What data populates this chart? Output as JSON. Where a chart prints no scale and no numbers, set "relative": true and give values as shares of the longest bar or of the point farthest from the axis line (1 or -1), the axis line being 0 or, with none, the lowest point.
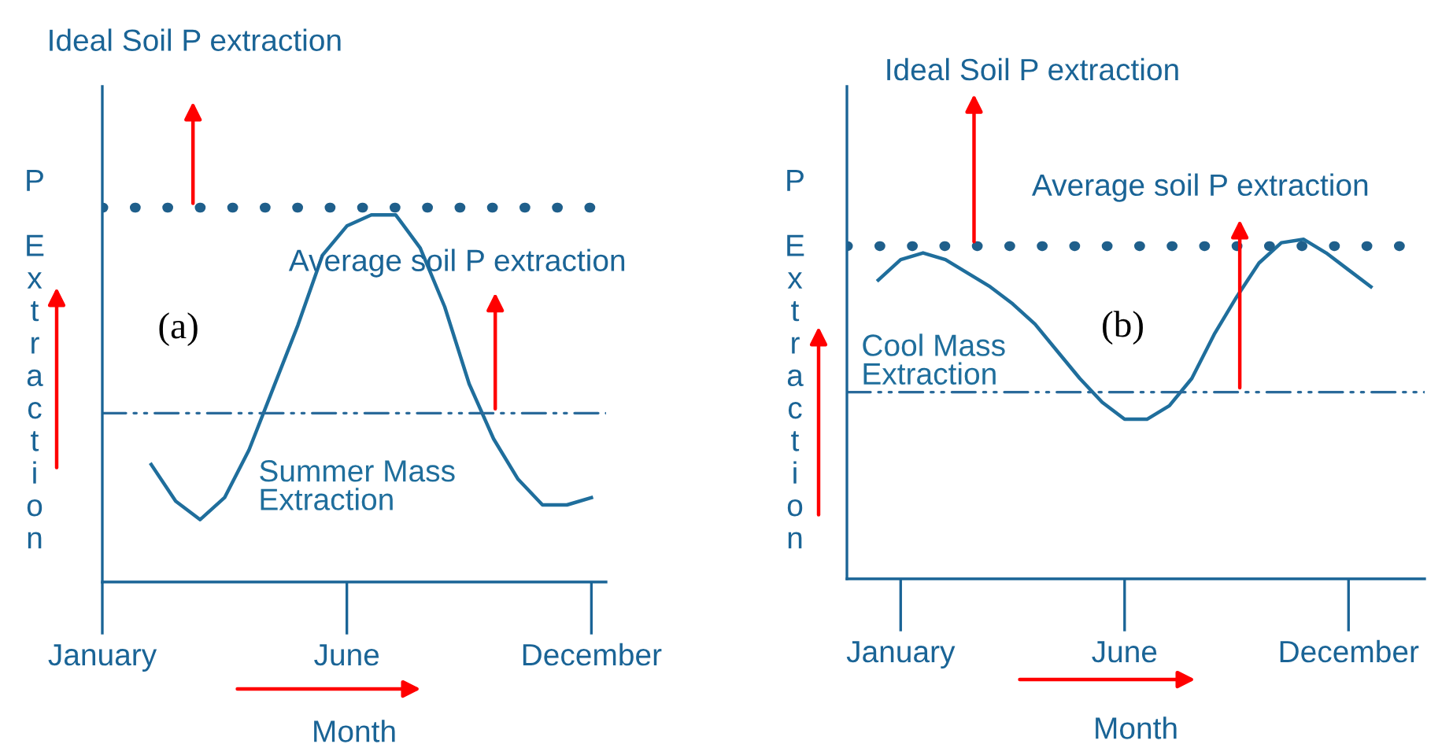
{
  "chart_data": [
    {
      "type": "line",
      "relative": true,
      "xlabel": "Month",
      "ylabel": "P Extraction",
      "categories": [
        "January",
        null,
        null,
        null,
        null,
        null,
        null,
        null,
        null,
        null,
        "June",
        null,
        null,
        null,
        null,
        null,
        null,
        null,
        null,
        null,
        "December"
      ],
      "series": [
        {
          "name": "Summer Mass Extraction",
          "color": "#1f6e9c",
          "values": [
            null,
            null,
            0.32,
            0.22,
            0.17,
            0.23,
            0.36,
            0.53,
            0.7,
            0.89,
            0.97,
            1.0,
            1.0,
            0.91,
            0.75,
            0.54,
            0.39,
            0.28,
            0.21,
            0.21,
            0.23
          ]
        }
      ],
      "ref_lines": [
        {
          "axis": "y",
          "value": 1.02,
          "label": "Ideal Soil P extraction",
          "color": "#1f5f8b",
          "line_style": "dotted"
        },
        {
          "axis": "y",
          "value": 0.46,
          "label": "Average soil P extraction",
          "color": "#2a6a9a",
          "line_style": "dashdot"
        }
      ],
      "annotations": [
        "(a)"
      ],
      "grid": false,
      "legend": false
    },
    {
      "type": "line",
      "relative": true,
      "xlabel": "Month",
      "ylabel": "P Extraction",
      "categories": [
        null,
        "January",
        null,
        null,
        null,
        null,
        null,
        null,
        null,
        null,
        null,
        "June",
        null,
        null,
        null,
        null,
        null,
        null,
        null,
        null,
        null,
        "December",
        null
      ],
      "series": [
        {
          "name": "Cool Mass Extraction",
          "color": "#1f6e9c",
          "values": [
            0.88,
            0.94,
            0.96,
            0.94,
            0.9,
            0.86,
            0.81,
            0.75,
            0.67,
            0.59,
            0.52,
            0.47,
            0.47,
            0.51,
            0.59,
            0.72,
            0.83,
            0.93,
            0.99,
            1.0,
            0.96,
            0.91,
            0.86
          ]
        }
      ],
      "ref_lines": [
        {
          "axis": "y",
          "value": 0.98,
          "label": "Ideal Soil P extraction",
          "color": "#1f5f8b",
          "line_style": "dotted"
        },
        {
          "axis": "y",
          "value": 0.55,
          "label": "Average soil P extraction",
          "color": "#2a6a9a",
          "line_style": "dashdot"
        }
      ],
      "annotations": [
        "(b)"
      ],
      "grid": false,
      "legend": false
    }
  ]
}
